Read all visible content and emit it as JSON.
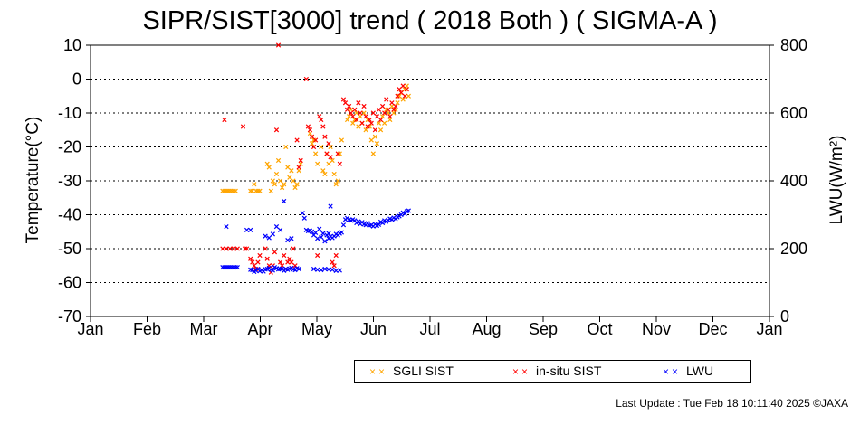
{
  "title": "SIPR/SIST[3000] trend ( 2018 Both ) ( SIGMA-A )",
  "footer": "Last Update : Tue Feb 18 10:11:40 2025 ©JAXA",
  "colors": {
    "sgli": "#ffa500",
    "insitu": "#ff0000",
    "lwu": "#0000ff",
    "grid": "#000000"
  },
  "legend": [
    {
      "key": "sgli",
      "marker": "××",
      "label": "SGLI SIST"
    },
    {
      "key": "insitu",
      "marker": "××",
      "label": "in-situ SIST"
    },
    {
      "key": "lwu",
      "marker": "××",
      "label": "LWU"
    }
  ],
  "chart_data": {
    "type": "scatter",
    "title": "SIPR/SIST[3000] trend ( 2018 Both ) ( SIGMA-A )",
    "xlabel": "",
    "ylabel": "Temperature(°C)",
    "y2label": "LWU(W/m²)",
    "x_ticks": [
      "Jan",
      "Feb",
      "Mar",
      "Apr",
      "May",
      "Jun",
      "Jul",
      "Aug",
      "Sep",
      "Oct",
      "Nov",
      "Dec",
      "Jan"
    ],
    "xlim_days": [
      0,
      365
    ],
    "ylim": [
      -70,
      10
    ],
    "y_ticks": [
      10,
      0,
      -10,
      -20,
      -30,
      -40,
      -50,
      -60,
      -70
    ],
    "y2lim": [
      0,
      800
    ],
    "y2_ticks": [
      800,
      600,
      400,
      200,
      0
    ],
    "grid": "horizontal dotted",
    "legend_position": "bottom-right",
    "series": [
      {
        "name": "SGLI SIST",
        "axis": "left",
        "points": [
          [
            71,
            -33
          ],
          [
            72,
            -33
          ],
          [
            73,
            -33
          ],
          [
            74,
            -33
          ],
          [
            75,
            -33
          ],
          [
            76,
            -33
          ],
          [
            77,
            -33
          ],
          [
            78,
            -33
          ],
          [
            86,
            -33
          ],
          [
            87,
            -33
          ],
          [
            88,
            -31
          ],
          [
            89,
            -33
          ],
          [
            90,
            -33
          ],
          [
            91,
            -33
          ],
          [
            95,
            -25
          ],
          [
            96,
            -26
          ],
          [
            97,
            -33
          ],
          [
            98,
            -30
          ],
          [
            99,
            -31
          ],
          [
            100,
            -28
          ],
          [
            101,
            -24
          ],
          [
            102,
            -30
          ],
          [
            103,
            -32
          ],
          [
            104,
            -31
          ],
          [
            105,
            -20
          ],
          [
            106,
            -26
          ],
          [
            107,
            -29
          ],
          [
            108,
            -27
          ],
          [
            109,
            -30
          ],
          [
            110,
            -32
          ],
          [
            111,
            -31
          ],
          [
            112,
            -27
          ],
          [
            113,
            -25
          ],
          [
            118,
            -16
          ],
          [
            119,
            -19
          ],
          [
            120,
            -18
          ],
          [
            121,
            -22
          ],
          [
            122,
            -25
          ],
          [
            124,
            -20
          ],
          [
            125,
            -27
          ],
          [
            126,
            -28
          ],
          [
            127,
            -22
          ],
          [
            128,
            -25
          ],
          [
            129,
            -20
          ],
          [
            130,
            -24
          ],
          [
            131,
            -28
          ],
          [
            132,
            -31
          ],
          [
            133,
            -30
          ],
          [
            134,
            -22
          ],
          [
            135,
            -18
          ],
          [
            138,
            -12
          ],
          [
            139,
            -11
          ],
          [
            140,
            -9
          ],
          [
            141,
            -13
          ],
          [
            142,
            -12
          ],
          [
            143,
            -10
          ],
          [
            144,
            -14
          ],
          [
            145,
            -11
          ],
          [
            146,
            -13
          ],
          [
            147,
            -10
          ],
          [
            148,
            -15
          ],
          [
            149,
            -12
          ],
          [
            150,
            -14
          ],
          [
            151,
            -18
          ],
          [
            152,
            -22
          ],
          [
            153,
            -17
          ],
          [
            154,
            -19
          ],
          [
            155,
            -13
          ],
          [
            156,
            -15
          ],
          [
            157,
            -11
          ],
          [
            158,
            -13
          ],
          [
            159,
            -9
          ],
          [
            160,
            -10
          ],
          [
            161,
            -12
          ],
          [
            162,
            -8
          ],
          [
            163,
            -10
          ],
          [
            164,
            -9
          ],
          [
            165,
            -7
          ],
          [
            166,
            -5
          ],
          [
            167,
            -4
          ],
          [
            168,
            -6
          ],
          [
            169,
            -3
          ],
          [
            170,
            -2
          ],
          [
            171,
            -5
          ]
        ]
      },
      {
        "name": "in-situ SIST",
        "axis": "left",
        "points": [
          [
            72,
            -12
          ],
          [
            71,
            -50
          ],
          [
            73,
            -50
          ],
          [
            75,
            -50
          ],
          [
            77,
            -50
          ],
          [
            79,
            -50
          ],
          [
            82,
            -14
          ],
          [
            83,
            -50
          ],
          [
            84,
            -50
          ],
          [
            86,
            -53
          ],
          [
            87,
            -54
          ],
          [
            88,
            -55
          ],
          [
            89,
            -56
          ],
          [
            90,
            -54
          ],
          [
            91,
            -52
          ],
          [
            94,
            -50
          ],
          [
            95,
            -53
          ],
          [
            96,
            -55
          ],
          [
            97,
            -57
          ],
          [
            98,
            -55
          ],
          [
            99,
            -51
          ],
          [
            100,
            -15
          ],
          [
            101,
            10
          ],
          [
            102,
            -54
          ],
          [
            103,
            -55
          ],
          [
            104,
            -52
          ],
          [
            105,
            -56
          ],
          [
            106,
            -54
          ],
          [
            107,
            -53
          ],
          [
            108,
            -54
          ],
          [
            109,
            -50
          ],
          [
            110,
            -55
          ],
          [
            111,
            -18
          ],
          [
            112,
            -26
          ],
          [
            113,
            -24
          ],
          [
            116,
            0
          ],
          [
            117,
            -14
          ],
          [
            118,
            -15
          ],
          [
            119,
            -17
          ],
          [
            120,
            -20
          ],
          [
            121,
            -18
          ],
          [
            122,
            -52
          ],
          [
            123,
            -11
          ],
          [
            124,
            -12
          ],
          [
            125,
            -14
          ],
          [
            126,
            -17
          ],
          [
            127,
            -22
          ],
          [
            128,
            -19
          ],
          [
            129,
            -23
          ],
          [
            130,
            -54
          ],
          [
            131,
            -55
          ],
          [
            132,
            -52
          ],
          [
            133,
            -22
          ],
          [
            134,
            -25
          ],
          [
            136,
            -6
          ],
          [
            137,
            -7
          ],
          [
            138,
            -9
          ],
          [
            139,
            -8
          ],
          [
            140,
            -10
          ],
          [
            141,
            -11
          ],
          [
            142,
            -9
          ],
          [
            143,
            -12
          ],
          [
            144,
            -7
          ],
          [
            145,
            -10
          ],
          [
            146,
            -13
          ],
          [
            147,
            -8
          ],
          [
            148,
            -11
          ],
          [
            149,
            -14
          ],
          [
            150,
            -12
          ],
          [
            151,
            -13
          ],
          [
            152,
            -10
          ],
          [
            153,
            -15
          ],
          [
            154,
            -11
          ],
          [
            155,
            -9
          ],
          [
            156,
            -12
          ],
          [
            157,
            -8
          ],
          [
            158,
            -10
          ],
          [
            159,
            -6
          ],
          [
            160,
            -9
          ],
          [
            161,
            -11
          ],
          [
            162,
            -7
          ],
          [
            163,
            -9
          ],
          [
            164,
            -8
          ],
          [
            165,
            -5
          ],
          [
            166,
            -3
          ],
          [
            167,
            -4
          ],
          [
            168,
            -2
          ],
          [
            169,
            -5
          ],
          [
            170,
            -3
          ]
        ]
      },
      {
        "name": "LWU",
        "axis": "right",
        "points": [
          [
            71,
            145
          ],
          [
            72,
            145
          ],
          [
            73,
            145
          ],
          [
            74,
            145
          ],
          [
            75,
            145
          ],
          [
            76,
            145
          ],
          [
            77,
            145
          ],
          [
            78,
            145
          ],
          [
            79,
            145
          ],
          [
            73,
            265
          ],
          [
            86,
            255
          ],
          [
            84,
            255
          ],
          [
            86,
            138
          ],
          [
            87,
            137
          ],
          [
            88,
            132
          ],
          [
            89,
            135
          ],
          [
            90,
            140
          ],
          [
            91,
            134
          ],
          [
            92,
            137
          ],
          [
            93,
            133
          ],
          [
            94,
            139
          ],
          [
            95,
            140
          ],
          [
            96,
            143
          ],
          [
            97,
            138
          ],
          [
            98,
            136
          ],
          [
            99,
            145
          ],
          [
            100,
            142
          ],
          [
            101,
            139
          ],
          [
            102,
            140
          ],
          [
            103,
            141
          ],
          [
            104,
            135
          ],
          [
            105,
            140
          ],
          [
            106,
            138
          ],
          [
            107,
            141
          ],
          [
            108,
            143
          ],
          [
            109,
            139
          ],
          [
            110,
            137
          ],
          [
            111,
            142
          ],
          [
            112,
            140
          ],
          [
            94,
            237
          ],
          [
            96,
            232
          ],
          [
            98,
            243
          ],
          [
            100,
            265
          ],
          [
            102,
            255
          ],
          [
            104,
            340
          ],
          [
            106,
            225
          ],
          [
            108,
            230
          ],
          [
            114,
            305
          ],
          [
            115,
            290
          ],
          [
            116,
            255
          ],
          [
            117,
            252
          ],
          [
            118,
            253
          ],
          [
            119,
            250
          ],
          [
            120,
            240
          ],
          [
            121,
            247
          ],
          [
            122,
            230
          ],
          [
            123,
            258
          ],
          [
            124,
            234
          ],
          [
            125,
            245
          ],
          [
            126,
            222
          ],
          [
            127,
            240
          ],
          [
            128,
            230
          ],
          [
            129,
            236
          ],
          [
            130,
            232
          ],
          [
            131,
            237
          ],
          [
            132,
            243
          ],
          [
            133,
            240
          ],
          [
            134,
            245
          ],
          [
            135,
            248
          ],
          [
            128,
            245
          ],
          [
            129,
            325
          ],
          [
            120,
            140
          ],
          [
            122,
            138
          ],
          [
            124,
            137
          ],
          [
            126,
            140
          ],
          [
            128,
            139
          ],
          [
            130,
            138
          ],
          [
            132,
            135
          ],
          [
            134,
            136
          ],
          [
            136,
            270
          ],
          [
            137,
            286
          ],
          [
            138,
            290
          ],
          [
            139,
            285
          ],
          [
            140,
            283
          ],
          [
            141,
            286
          ],
          [
            142,
            283
          ],
          [
            143,
            276
          ],
          [
            144,
            280
          ],
          [
            145,
            273
          ],
          [
            146,
            278
          ],
          [
            147,
            272
          ],
          [
            148,
            270
          ],
          [
            149,
            275
          ],
          [
            150,
            268
          ],
          [
            151,
            270
          ],
          [
            152,
            266
          ],
          [
            153,
            272
          ],
          [
            154,
            268
          ],
          [
            155,
            271
          ],
          [
            156,
            279
          ],
          [
            157,
            276
          ],
          [
            158,
            283
          ],
          [
            159,
            280
          ],
          [
            160,
            284
          ],
          [
            161,
            288
          ],
          [
            162,
            286
          ],
          [
            163,
            291
          ],
          [
            164,
            288
          ],
          [
            165,
            293
          ],
          [
            166,
            296
          ],
          [
            167,
            300
          ],
          [
            168,
            306
          ],
          [
            169,
            303
          ],
          [
            170,
            310
          ],
          [
            171,
            312
          ]
        ]
      }
    ]
  }
}
